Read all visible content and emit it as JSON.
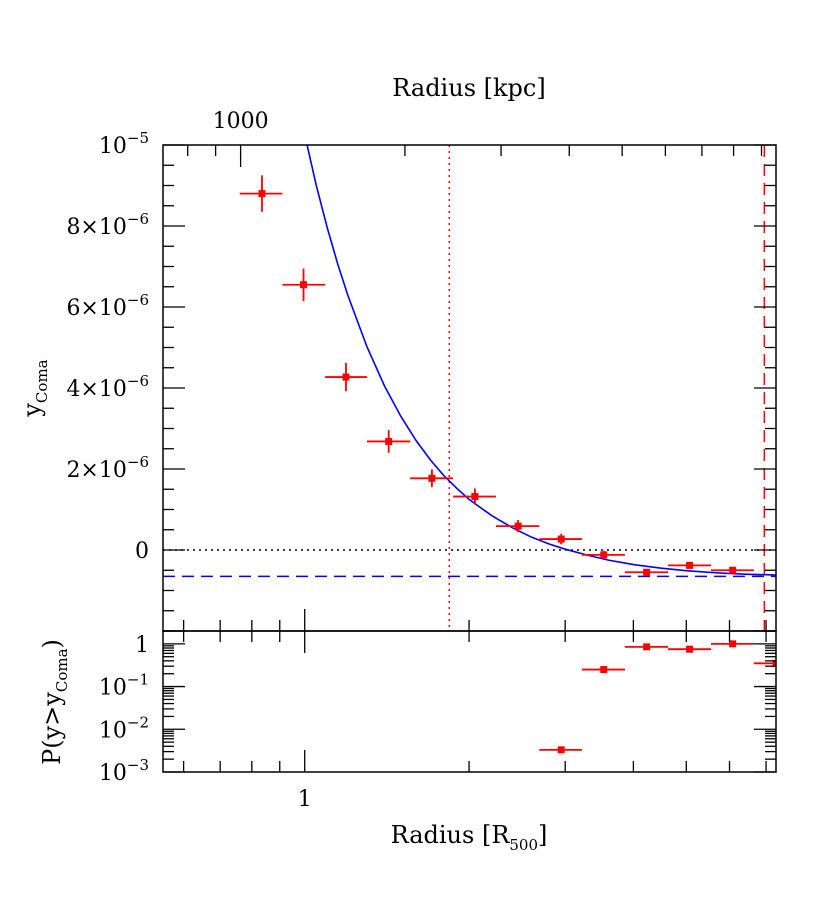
{
  "chart_data": [
    {
      "panel": "top",
      "type": "scatter",
      "top_axis": {
        "label": "Radius [kpc]",
        "tick_labels": [
          {
            "value": 1000,
            "text": "1000"
          }
        ]
      },
      "x_scale": "log",
      "xlim": [
        0.55,
        7.3
      ],
      "ylim": [
        -2e-06,
        1e-05
      ],
      "ylabel_main": "y",
      "ylabel_sub": "Coma",
      "yticks": [
        {
          "value": 0,
          "base": "0",
          "exp": ""
        },
        {
          "value": 2e-06,
          "base": "2×10",
          "exp": "−6"
        },
        {
          "value": 4e-06,
          "base": "4×10",
          "exp": "−6"
        },
        {
          "value": 6e-06,
          "base": "6×10",
          "exp": "−6"
        },
        {
          "value": 8e-06,
          "base": "8×10",
          "exp": "−6"
        },
        {
          "value": 1e-05,
          "base": "10",
          "exp": "−5"
        }
      ],
      "series": [
        {
          "marker": "square",
          "color": "#ff0000",
          "points": [
            {
              "x": 0.835,
              "y": 8.8e-06,
              "xlo": 0.76,
              "xhi": 0.91,
              "yerr": 4.5e-07
            },
            {
              "x": 0.995,
              "y": 6.55e-06,
              "xlo": 0.91,
              "xhi": 1.09,
              "yerr": 4e-07
            },
            {
              "x": 1.19,
              "y": 4.27e-06,
              "xlo": 1.09,
              "xhi": 1.3,
              "yerr": 3.5e-07
            },
            {
              "x": 1.425,
              "y": 2.68e-06,
              "xlo": 1.3,
              "xhi": 1.56,
              "yerr": 2.8e-07
            },
            {
              "x": 1.71,
              "y": 1.77e-06,
              "xlo": 1.56,
              "xhi": 1.87,
              "yerr": 2.2e-07
            },
            {
              "x": 2.05,
              "y": 1.32e-06,
              "xlo": 1.87,
              "xhi": 2.24,
              "yerr": 2e-07
            },
            {
              "x": 2.46,
              "y": 5.9e-07,
              "xlo": 2.24,
              "xhi": 2.69,
              "yerr": 1.5e-07
            },
            {
              "x": 2.95,
              "y": 2.7e-07,
              "xlo": 2.69,
              "xhi": 3.22,
              "yerr": 1.3e-07
            },
            {
              "x": 3.53,
              "y": -1.2e-07,
              "xlo": 3.22,
              "xhi": 3.86,
              "yerr": 1e-07
            },
            {
              "x": 4.23,
              "y": -5.5e-07,
              "xlo": 3.86,
              "xhi": 4.63,
              "yerr": 8e-08
            },
            {
              "x": 5.07,
              "y": -3.8e-07,
              "xlo": 4.63,
              "xhi": 5.55,
              "yerr": 8e-08
            },
            {
              "x": 6.08,
              "y": -5e-07,
              "xlo": 5.55,
              "xhi": 6.65,
              "yerr": 7e-08
            }
          ]
        }
      ],
      "model_curve": {
        "color": "#0000ff",
        "x": [
          1.01,
          1.05,
          1.1,
          1.15,
          1.2,
          1.3,
          1.4,
          1.5,
          1.6,
          1.7,
          1.8,
          1.9,
          2.0,
          2.2,
          2.4,
          2.6,
          2.8,
          3.0,
          3.3,
          3.6,
          4.0,
          4.5,
          5.0,
          5.5,
          6.0,
          6.5,
          7.0,
          7.3
        ],
        "y": [
          1e-05,
          9e-06,
          7.95e-06,
          7.05e-06,
          6.28e-06,
          5.02e-06,
          4.05e-06,
          3.3e-06,
          2.7e-06,
          2.22e-06,
          1.83e-06,
          1.52e-06,
          1.25e-06,
          8.5e-07,
          5.5e-07,
          3.2e-07,
          1.5e-07,
          2e-08,
          -1.3e-07,
          -2.5e-07,
          -3.6e-07,
          -4.5e-07,
          -5.1e-07,
          -5.5e-07,
          -5.8e-07,
          -6e-07,
          -6.1e-07,
          -6.2e-07
        ]
      },
      "reference_lines": [
        {
          "orientation": "horizontal",
          "value": 0,
          "style": "dotted",
          "color": "#000000"
        },
        {
          "orientation": "horizontal",
          "value": -6.5e-07,
          "style": "dashed",
          "color": "#0000ff"
        },
        {
          "orientation": "vertical",
          "value": 1.84,
          "style": "dotted",
          "color": "#ff0000"
        },
        {
          "orientation": "vertical",
          "value": 6.95,
          "style": "dashed",
          "color": "#ff0000"
        }
      ]
    },
    {
      "panel": "bottom",
      "type": "scatter",
      "x_scale": "log",
      "y_scale": "log",
      "xlim": [
        0.55,
        7.3
      ],
      "ylim": [
        0.001,
        2.0
      ],
      "xlabel_main": "Radius [R",
      "xlabel_sub": "500",
      "xlabel_close": "]",
      "xticks": [
        {
          "value": 1,
          "text": "1"
        }
      ],
      "ylabel_main": "P(y>y",
      "ylabel_sub": "Coma",
      "ylabel_close": ")",
      "yticks": [
        {
          "value": 0.001,
          "base": "10",
          "exp": "−3"
        },
        {
          "value": 0.01,
          "base": "10",
          "exp": "−2"
        },
        {
          "value": 0.1,
          "base": "10",
          "exp": "−1"
        },
        {
          "value": 1,
          "base": "1",
          "exp": ""
        }
      ],
      "series": [
        {
          "marker": "square",
          "color": "#ff0000",
          "points": [
            {
              "x": 2.95,
              "y": 0.0033,
              "xlo": 2.69,
              "xhi": 3.22
            },
            {
              "x": 3.53,
              "y": 0.25,
              "xlo": 3.22,
              "xhi": 3.86
            },
            {
              "x": 4.23,
              "y": 0.85,
              "xlo": 3.86,
              "xhi": 4.63
            },
            {
              "x": 5.07,
              "y": 0.75,
              "xlo": 4.63,
              "xhi": 5.55
            },
            {
              "x": 6.08,
              "y": 1.0,
              "xlo": 5.55,
              "xhi": 6.65
            },
            {
              "x": 7.3,
              "y": 0.35,
              "xlo": 6.65,
              "xhi": 7.3
            }
          ]
        }
      ]
    }
  ]
}
